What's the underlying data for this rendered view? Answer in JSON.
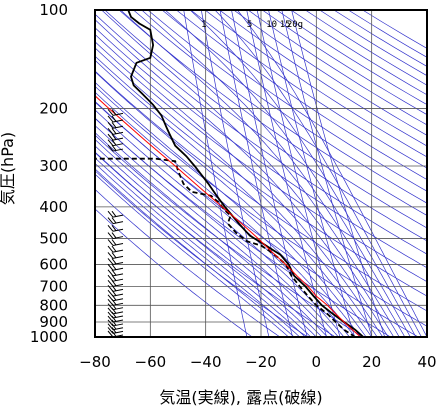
{
  "chart_data": {
    "type": "line",
    "title": "",
    "xlabel": "気温(実線), 露点(破線)",
    "ylabel": "気圧(hPa)",
    "xlim": [
      -80,
      40
    ],
    "ylim": [
      1000,
      100
    ],
    "y_scale": "log",
    "grid": true,
    "x_ticks": [
      "−80",
      "−60",
      "−40",
      "−20",
      "0",
      "20",
      "40"
    ],
    "x_tick_values": [
      -80,
      -60,
      -40,
      -20,
      0,
      20,
      40
    ],
    "y_ticks": [
      "100",
      "200",
      "300",
      "400",
      "500",
      "600",
      "700",
      "800",
      "900",
      "1000"
    ],
    "y_tick_values": [
      100,
      200,
      300,
      400,
      500,
      600,
      700,
      800,
      900,
      1000
    ],
    "mixing_ratio_labels": [
      "1",
      "5",
      "10",
      "15",
      "20g"
    ],
    "colors": {
      "temperature": "#000000",
      "dewpoint": "#000000",
      "parcel": "#ff0000",
      "adiabats": "#3333cc",
      "grid": "#555555"
    },
    "series": [
      {
        "line": "solid",
        "color": "#000000",
        "points": [
          [
            17,
            1000
          ],
          [
            14,
            950
          ],
          [
            10,
            900
          ],
          [
            6,
            850
          ],
          [
            2,
            800
          ],
          [
            -1,
            750
          ],
          [
            -4,
            700
          ],
          [
            -8,
            650
          ],
          [
            -10,
            600
          ],
          [
            -13,
            560
          ],
          [
            -16,
            540
          ],
          [
            -19,
            520
          ],
          [
            -24,
            490
          ],
          [
            -28,
            450
          ],
          [
            -33,
            400
          ],
          [
            -36,
            370
          ],
          [
            -39,
            340
          ],
          [
            -44,
            300
          ],
          [
            -47,
            280
          ],
          [
            -51,
            260
          ],
          [
            -53,
            240
          ],
          [
            -54,
            230
          ],
          [
            -56,
            210
          ],
          [
            -59,
            195
          ],
          [
            -63,
            180
          ],
          [
            -66,
            170
          ],
          [
            -67,
            160
          ],
          [
            -65,
            145
          ],
          [
            -60,
            140
          ],
          [
            -59,
            128
          ],
          [
            -60,
            115
          ],
          [
            -64,
            110
          ],
          [
            -67,
            105
          ],
          [
            -68,
            100
          ]
        ]
      },
      {
        "line": "dashed",
        "color": "#000000",
        "points": [
          [
            14,
            1000
          ],
          [
            10,
            950
          ],
          [
            7,
            900
          ],
          [
            4,
            850
          ],
          [
            0,
            800
          ],
          [
            -3,
            750
          ],
          [
            -6,
            700
          ],
          [
            -9,
            650
          ],
          [
            -11,
            600
          ],
          [
            -14,
            570
          ],
          [
            -17,
            545
          ],
          [
            -20,
            525
          ],
          [
            -25,
            510
          ],
          [
            -29,
            480
          ],
          [
            -32,
            450
          ],
          [
            -31,
            425
          ],
          [
            -33,
            410
          ],
          [
            -35,
            390
          ],
          [
            -38,
            370
          ],
          [
            -45,
            360
          ],
          [
            -48,
            340
          ],
          [
            -50,
            310
          ],
          [
            -51,
            290
          ],
          [
            -58,
            285
          ],
          [
            -72,
            285
          ],
          [
            -80,
            285
          ]
        ]
      },
      {
        "line": "solid",
        "color": "#ff0000",
        "points": [
          [
            16,
            1000
          ],
          [
            13,
            950
          ],
          [
            10,
            900
          ],
          [
            7,
            850
          ],
          [
            4,
            800
          ],
          [
            0,
            750
          ],
          [
            -3,
            700
          ],
          [
            -7,
            650
          ],
          [
            -11,
            600
          ],
          [
            -16,
            550
          ],
          [
            -21,
            500
          ],
          [
            -27,
            450
          ],
          [
            -34,
            400
          ],
          [
            -42,
            350
          ],
          [
            -51,
            300
          ],
          [
            -62,
            250
          ],
          [
            -75,
            200
          ],
          [
            -80,
            183
          ]
        ]
      }
    ],
    "wind_barbs": {
      "pressures": [
        1000,
        975,
        950,
        925,
        900,
        875,
        850,
        825,
        800,
        775,
        750,
        725,
        700,
        675,
        650,
        625,
        600,
        575,
        550,
        525,
        500,
        475,
        450,
        430,
        270,
        260,
        250,
        240,
        230,
        220,
        210
      ]
    }
  }
}
